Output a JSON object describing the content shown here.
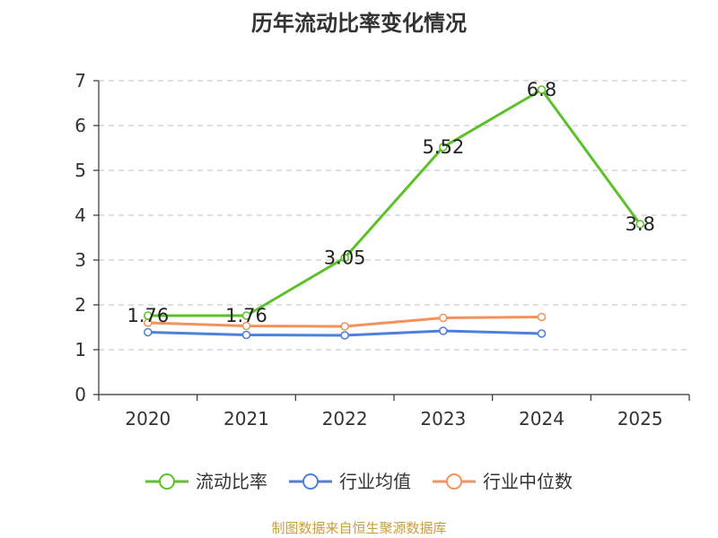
{
  "chart_data": {
    "type": "line",
    "title": "历年流动比率变化情况",
    "categories": [
      "2020",
      "2021",
      "2022",
      "2023",
      "2024",
      "2025"
    ],
    "ylim": [
      0,
      7
    ],
    "yticks": [
      0,
      1,
      2,
      3,
      4,
      5,
      6,
      7
    ],
    "grid": true,
    "legend_position": "bottom",
    "series": [
      {
        "name": "流动比率",
        "color": "#5cc12a",
        "values": [
          1.76,
          1.76,
          3.05,
          5.52,
          6.8,
          3.8
        ],
        "labels": [
          "1.76",
          "1.76",
          "3.05",
          "5.52",
          "6.8",
          "3.8"
        ]
      },
      {
        "name": "行业均值",
        "color": "#4f7fda",
        "values": [
          1.39,
          1.33,
          1.32,
          1.42,
          1.36,
          null
        ]
      },
      {
        "name": "行业中位数",
        "color": "#f4925c",
        "values": [
          1.6,
          1.53,
          1.52,
          1.71,
          1.73,
          null
        ]
      }
    ]
  },
  "footer": {
    "source": "制图数据来自恒生聚源数据库"
  }
}
